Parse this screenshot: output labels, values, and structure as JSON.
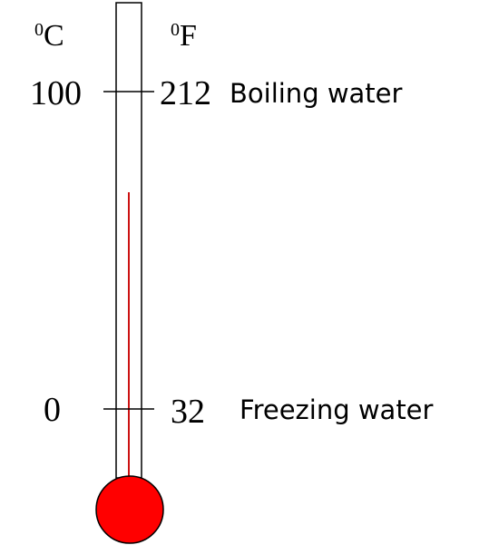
{
  "units": {
    "celsius": {
      "prefix": "0",
      "letter": "C"
    },
    "fahrenheit": {
      "prefix": "0",
      "letter": "F"
    }
  },
  "marks": {
    "boiling": {
      "celsius": "100",
      "fahrenheit": "212",
      "label": "Boiling water"
    },
    "freezing": {
      "celsius": "0",
      "fahrenheit": "32",
      "label": "Freezing water"
    }
  },
  "colors": {
    "mercury": "#cc1111",
    "bulb": "#ff0000",
    "outline": "#000000"
  }
}
